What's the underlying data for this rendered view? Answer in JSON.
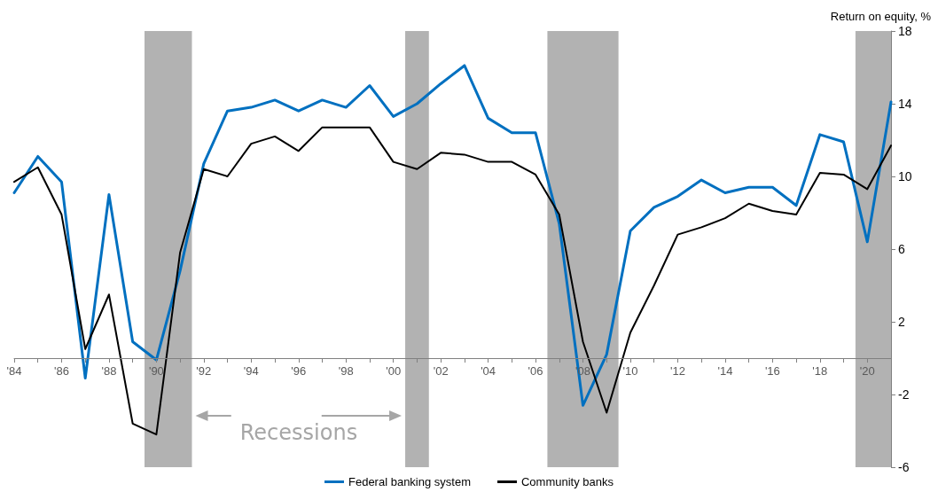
{
  "chart_data": {
    "type": "line",
    "ylabel": "Return on equity, %",
    "x": [
      1984,
      1985,
      1986,
      1987,
      1988,
      1989,
      1990,
      1991,
      1992,
      1993,
      1994,
      1995,
      1996,
      1997,
      1998,
      1999,
      2000,
      2001,
      2002,
      2003,
      2004,
      2005,
      2006,
      2007,
      2008,
      2009,
      2010,
      2011,
      2012,
      2013,
      2014,
      2015,
      2016,
      2017,
      2018,
      2019,
      2020,
      2021
    ],
    "series": [
      {
        "name": "Federal banking system",
        "color": "#0070c0",
        "values": [
          9.1,
          11.1,
          9.7,
          -1.1,
          9.0,
          0.9,
          -0.1,
          4.8,
          10.7,
          13.6,
          13.8,
          14.2,
          13.6,
          14.2,
          13.8,
          15.0,
          13.3,
          14.0,
          15.1,
          16.1,
          13.2,
          12.4,
          12.4,
          7.4,
          -2.6,
          0.2,
          7.0,
          8.3,
          8.9,
          9.8,
          9.1,
          9.4,
          9.4,
          8.4,
          12.3,
          11.9,
          6.4,
          14.1
        ]
      },
      {
        "name": "Community banks",
        "color": "#000000",
        "values": [
          9.7,
          10.5,
          7.9,
          0.5,
          3.5,
          -3.6,
          -4.2,
          5.8,
          10.4,
          10.0,
          11.8,
          12.2,
          11.4,
          12.7,
          12.7,
          12.7,
          10.8,
          10.4,
          11.3,
          11.2,
          10.8,
          10.8,
          10.1,
          7.9,
          0.9,
          -3.0,
          1.4,
          4.0,
          6.8,
          7.2,
          7.7,
          8.5,
          8.1,
          7.9,
          10.2,
          10.1,
          9.3,
          11.7
        ]
      }
    ],
    "xlim": [
      1984,
      2021
    ],
    "xticks": [
      {
        "value": 1984,
        "label": "'84"
      },
      {
        "value": 1985,
        "label": null
      },
      {
        "value": 1986,
        "label": "'86"
      },
      {
        "value": 1987,
        "label": null
      },
      {
        "value": 1988,
        "label": "'88"
      },
      {
        "value": 1989,
        "label": null
      },
      {
        "value": 1990,
        "label": "'90"
      },
      {
        "value": 1991,
        "label": null
      },
      {
        "value": 1992,
        "label": "'92"
      },
      {
        "value": 1993,
        "label": null
      },
      {
        "value": 1994,
        "label": "'94"
      },
      {
        "value": 1995,
        "label": null
      },
      {
        "value": 1996,
        "label": "'96"
      },
      {
        "value": 1997,
        "label": null
      },
      {
        "value": 1998,
        "label": "'98"
      },
      {
        "value": 1999,
        "label": null
      },
      {
        "value": 2000,
        "label": "'00"
      },
      {
        "value": 2001,
        "label": null
      },
      {
        "value": 2002,
        "label": "'02"
      },
      {
        "value": 2003,
        "label": null
      },
      {
        "value": 2004,
        "label": "'04"
      },
      {
        "value": 2005,
        "label": null
      },
      {
        "value": 2006,
        "label": "'06"
      },
      {
        "value": 2007,
        "label": null
      },
      {
        "value": 2008,
        "label": "'08"
      },
      {
        "value": 2009,
        "label": null
      },
      {
        "value": 2010,
        "label": "'10"
      },
      {
        "value": 2011,
        "label": null
      },
      {
        "value": 2012,
        "label": "'12"
      },
      {
        "value": 2013,
        "label": null
      },
      {
        "value": 2014,
        "label": "'14"
      },
      {
        "value": 2015,
        "label": null
      },
      {
        "value": 2016,
        "label": "'16"
      },
      {
        "value": 2017,
        "label": null
      },
      {
        "value": 2018,
        "label": "'18"
      },
      {
        "value": 2019,
        "label": null
      },
      {
        "value": 2020,
        "label": "'20"
      },
      {
        "value": 2021,
        "label": null
      }
    ],
    "ylim": [
      -6,
      18
    ],
    "yticks": [
      -6,
      -2,
      2,
      6,
      10,
      14,
      18
    ],
    "bands": [
      {
        "axis": "x",
        "from": 1989.5,
        "to": 1991.5,
        "color": "#b2b2b2"
      },
      {
        "axis": "x",
        "from": 2000.5,
        "to": 2001.5,
        "color": "#b2b2b2"
      },
      {
        "axis": "x",
        "from": 2006.5,
        "to": 2009.5,
        "color": "#b2b2b2"
      },
      {
        "axis": "x",
        "from": 2019.5,
        "to": 2021,
        "color": "#b2b2b2"
      }
    ],
    "annotations": [
      "Recessions"
    ],
    "grid": false,
    "legend": "bottom",
    "marker": "none",
    "line_style": "solid"
  }
}
